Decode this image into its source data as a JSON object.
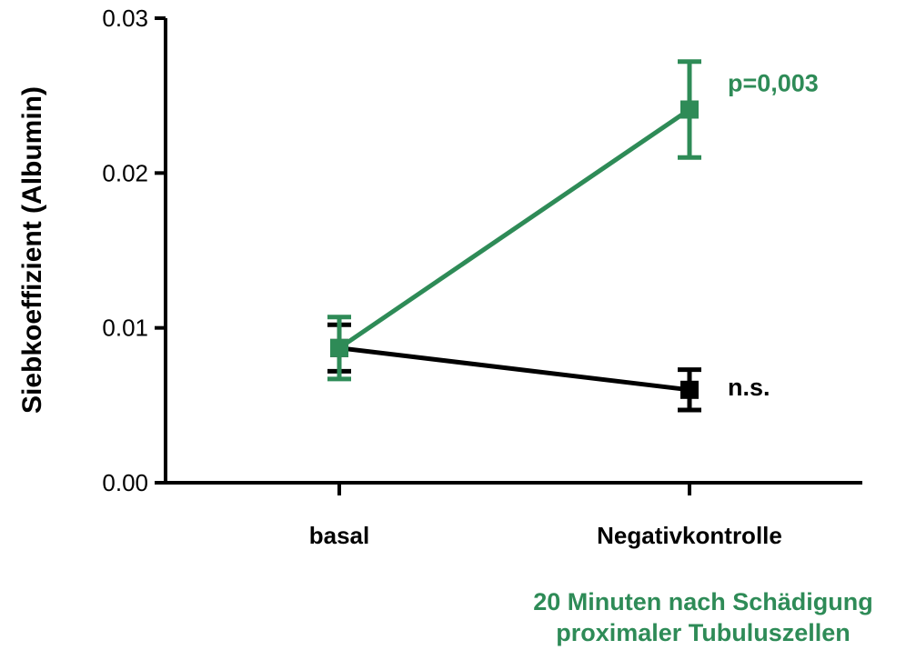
{
  "chart_data": {
    "type": "line",
    "categories": [
      "basal",
      "Negativkontrolle"
    ],
    "series": [
      {
        "values": [
          0.0087,
          0.006
        ],
        "errors": [
          0.0015,
          0.0013
        ],
        "color": "#000000"
      },
      {
        "values": [
          0.0087,
          0.0241
        ],
        "errors": [
          0.002,
          0.0031
        ],
        "color": "#2e8b57"
      }
    ],
    "ylabel": "Siebkoeffizient (Albumin)",
    "xlabel": "",
    "ylim": [
      0,
      0.03
    ],
    "yticks": [
      "0.00",
      "0.01",
      "0.02",
      "0.03"
    ],
    "annotations": [
      {
        "text": "n.s.",
        "series": 0,
        "color": "#000000"
      },
      {
        "text": "p=0,003",
        "series": 1,
        "color": "#2e8b57"
      }
    ],
    "footnote": [
      "20 Minuten nach Schädigung",
      "proximaler Tubuluszellen"
    ],
    "footnote_color": "#2e8b57",
    "grid": false,
    "legend": "none"
  }
}
